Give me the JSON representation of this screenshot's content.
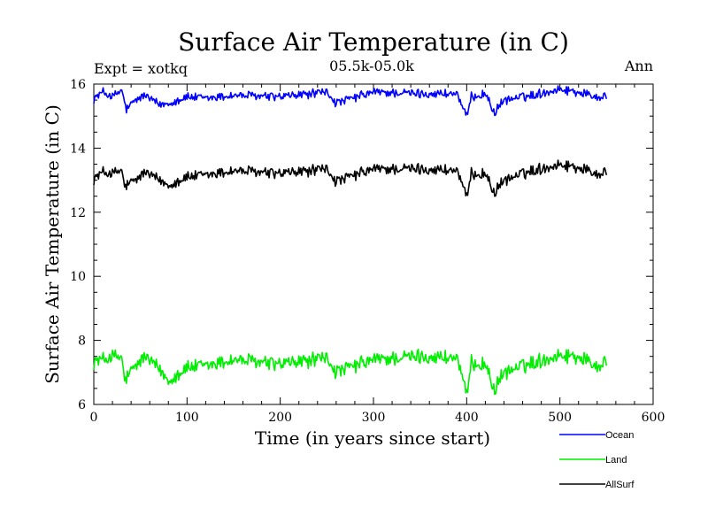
{
  "chart_data": {
    "type": "line",
    "title": "Surface Air Temperature (in C)",
    "header_left": "Expt = xotkq",
    "header_center": "05.5k-05.0k",
    "header_right": "Ann",
    "xlabel": "Time (in years since start)",
    "ylabel": "Surface Air Temperature (in C)",
    "xlim": [
      0,
      600
    ],
    "ylim": [
      6,
      16
    ],
    "xticks": [
      0,
      100,
      200,
      300,
      400,
      500,
      600
    ],
    "yticks": [
      6,
      8,
      10,
      12,
      14,
      16
    ],
    "x_tick_labels": [
      "0",
      "100",
      "200",
      "300",
      "400",
      "500",
      "600"
    ],
    "y_tick_labels": [
      "6",
      "8",
      "10",
      "12",
      "14",
      "16"
    ],
    "x_range_of_data": [
      0,
      550
    ],
    "series": [
      {
        "name": "Ocean",
        "color": "#0000ff",
        "key_points": [
          [
            0,
            15.55
          ],
          [
            10,
            15.75
          ],
          [
            20,
            15.6
          ],
          [
            30,
            15.8
          ],
          [
            35,
            15.2
          ],
          [
            45,
            15.5
          ],
          [
            55,
            15.65
          ],
          [
            70,
            15.35
          ],
          [
            80,
            15.4
          ],
          [
            100,
            15.6
          ],
          [
            120,
            15.55
          ],
          [
            150,
            15.65
          ],
          [
            200,
            15.6
          ],
          [
            250,
            15.75
          ],
          [
            260,
            15.4
          ],
          [
            300,
            15.75
          ],
          [
            350,
            15.7
          ],
          [
            390,
            15.7
          ],
          [
            395,
            15.3
          ],
          [
            400,
            14.95
          ],
          [
            405,
            15.6
          ],
          [
            420,
            15.7
          ],
          [
            430,
            15.1
          ],
          [
            440,
            15.5
          ],
          [
            470,
            15.65
          ],
          [
            500,
            15.85
          ],
          [
            520,
            15.75
          ],
          [
            540,
            15.6
          ],
          [
            550,
            15.65
          ]
        ]
      },
      {
        "name": "Land",
        "color": "#00ee00",
        "key_points": [
          [
            0,
            7.35
          ],
          [
            10,
            7.4
          ],
          [
            20,
            7.5
          ],
          [
            30,
            7.45
          ],
          [
            33,
            6.75
          ],
          [
            45,
            7.2
          ],
          [
            55,
            7.5
          ],
          [
            70,
            7.1
          ],
          [
            80,
            6.75
          ],
          [
            100,
            7.15
          ],
          [
            120,
            7.2
          ],
          [
            150,
            7.4
          ],
          [
            200,
            7.25
          ],
          [
            250,
            7.45
          ],
          [
            260,
            7.0
          ],
          [
            300,
            7.4
          ],
          [
            350,
            7.5
          ],
          [
            390,
            7.45
          ],
          [
            395,
            6.9
          ],
          [
            400,
            6.2
          ],
          [
            405,
            7.3
          ],
          [
            420,
            7.25
          ],
          [
            430,
            6.45
          ],
          [
            440,
            7.0
          ],
          [
            470,
            7.3
          ],
          [
            500,
            7.55
          ],
          [
            520,
            7.5
          ],
          [
            540,
            7.2
          ],
          [
            550,
            7.4
          ]
        ]
      },
      {
        "name": "AllSurf",
        "color": "#000000",
        "key_points": [
          [
            0,
            13.05
          ],
          [
            10,
            13.25
          ],
          [
            20,
            13.2
          ],
          [
            30,
            13.3
          ],
          [
            33,
            12.8
          ],
          [
            45,
            13.0
          ],
          [
            55,
            13.25
          ],
          [
            70,
            13.0
          ],
          [
            80,
            12.85
          ],
          [
            100,
            13.1
          ],
          [
            120,
            13.15
          ],
          [
            150,
            13.3
          ],
          [
            200,
            13.2
          ],
          [
            250,
            13.35
          ],
          [
            260,
            12.95
          ],
          [
            300,
            13.35
          ],
          [
            350,
            13.35
          ],
          [
            390,
            13.3
          ],
          [
            395,
            12.9
          ],
          [
            400,
            12.4
          ],
          [
            405,
            13.2
          ],
          [
            420,
            13.2
          ],
          [
            430,
            12.6
          ],
          [
            440,
            13.0
          ],
          [
            470,
            13.3
          ],
          [
            500,
            13.5
          ],
          [
            520,
            13.4
          ],
          [
            540,
            13.2
          ],
          [
            550,
            13.3
          ]
        ]
      }
    ],
    "legend": [
      "Ocean",
      "Land",
      "AllSurf"
    ],
    "legend_position": "bottom-right"
  }
}
